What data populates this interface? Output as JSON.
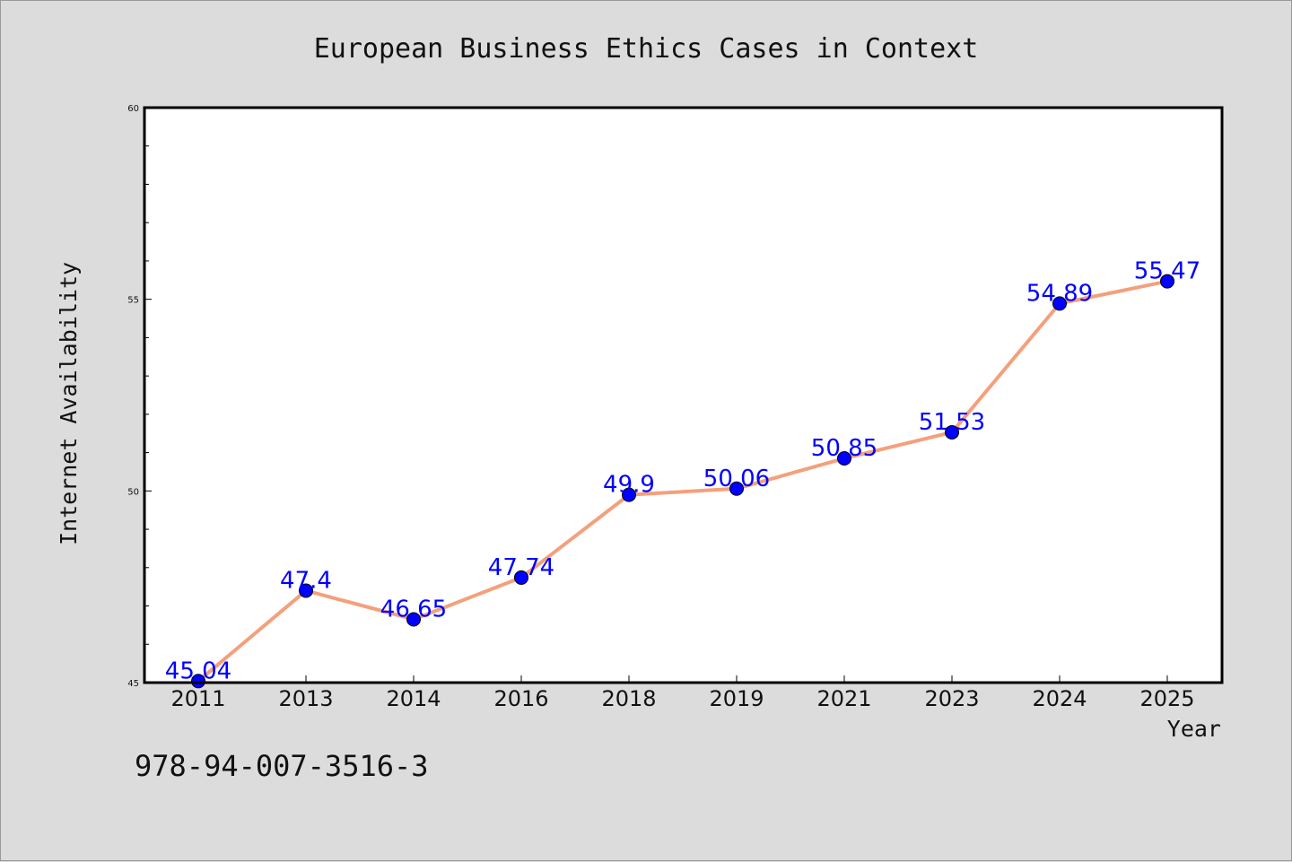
{
  "chart_data": {
    "type": "line",
    "title": "European Business Ethics Cases in Context",
    "xlabel": "Year",
    "ylabel": "Internet Availability",
    "categories": [
      "2011",
      "2013",
      "2014",
      "2016",
      "2018",
      "2019",
      "2021",
      "2023",
      "2024",
      "2025"
    ],
    "series": [
      {
        "values": [
          45.04,
          47.4,
          46.65,
          47.74,
          49.9,
          50.06,
          50.85,
          51.53,
          54.89,
          55.47
        ],
        "labels": [
          "45.04",
          "47.4",
          "46.65",
          "47.74",
          "49.9",
          "50.06",
          "50.85",
          "51.53",
          "54.89",
          "55.47"
        ],
        "line_color": "#f4a07c",
        "marker_color": "#0000ff"
      }
    ],
    "ylim": [
      45,
      60
    ],
    "yticks": [
      "45",
      "50",
      "55",
      "60"
    ],
    "grid": false,
    "legend": "none"
  },
  "footer": {
    "isbn": "978-94-007-3516-3"
  }
}
